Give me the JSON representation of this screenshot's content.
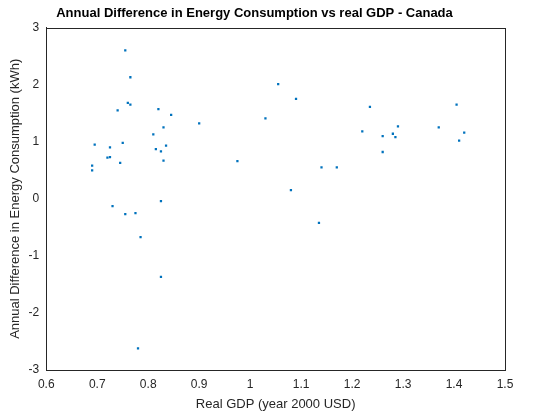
{
  "chart_data": {
    "type": "scatter",
    "title": "Annual Difference in Energy Consumption vs real GDP - Canada",
    "x_label": "Real GDP (year 2000 USD)",
    "y_label": "Annual Difference in Energy Consumption (kWh)",
    "color": "#0072bd",
    "marker": "square",
    "grid": false,
    "xlim": [
      0.6,
      1.5
    ],
    "xticks": [
      0.6,
      0.7,
      0.8,
      0.9,
      1,
      1.1,
      1.2,
      1.3,
      1.4,
      1.5
    ],
    "ylim": [
      -3,
      3
    ],
    "yticks": [
      -3,
      -2,
      -1,
      0,
      1,
      2,
      3
    ],
    "x": [
      0.69,
      0.69,
      0.695,
      0.72,
      0.725,
      0.725,
      0.73,
      0.74,
      0.745,
      0.75,
      0.755,
      0.755,
      0.76,
      0.765,
      0.765,
      0.775,
      0.78,
      0.785,
      0.81,
      0.815,
      0.82,
      0.825,
      0.825,
      0.825,
      0.83,
      0.83,
      0.835,
      0.845,
      0.9,
      0.975,
      1.03,
      1.055,
      1.08,
      1.09,
      1.135,
      1.14,
      1.17,
      1.22,
      1.235,
      1.26,
      1.26,
      1.28,
      1.285,
      1.29,
      1.37,
      1.405,
      1.41,
      1.42
    ],
    "values": [
      0.5,
      0.58,
      0.95,
      0.72,
      0.73,
      0.9,
      -0.13,
      1.55,
      0.63,
      0.98,
      -0.27,
      2.6,
      1.68,
      2.13,
      1.65,
      -0.25,
      -2.62,
      -0.67,
      1.13,
      0.87,
      1.57,
      -0.04,
      0.83,
      -1.37,
      0.67,
      1.25,
      0.93,
      1.47,
      1.32,
      0.66,
      1.41,
      2.01,
      0.15,
      1.75,
      -0.42,
      0.55,
      0.55,
      1.18,
      1.61,
      0.82,
      1.1,
      1.14,
      1.08,
      1.27,
      1.25,
      1.65,
      1.02,
      1.16
    ]
  }
}
